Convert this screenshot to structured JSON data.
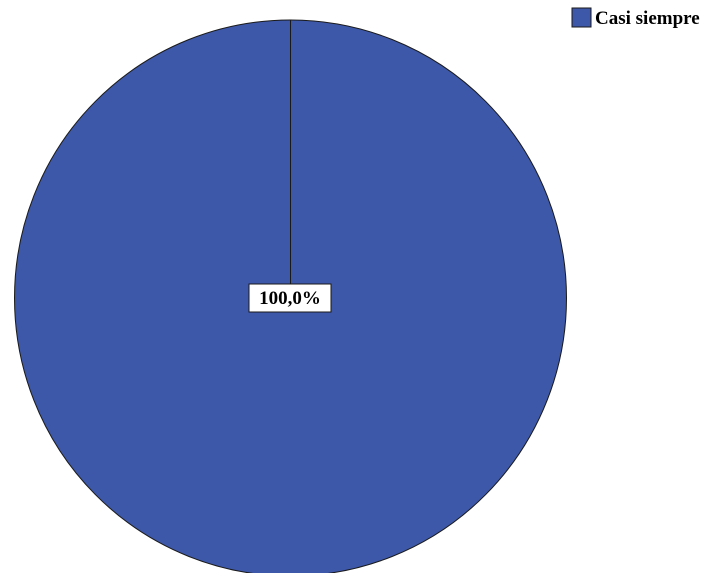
{
  "chart_data": {
    "type": "pie",
    "categories": [
      "Casi siempre"
    ],
    "values": [
      100.0
    ],
    "data_labels": [
      "100,0%"
    ],
    "colors": [
      "#3d57a9"
    ],
    "legend": {
      "placement": "top-right",
      "entries": [
        "Casi siempre"
      ]
    },
    "title": "",
    "start_angle": "12 o'clock"
  }
}
